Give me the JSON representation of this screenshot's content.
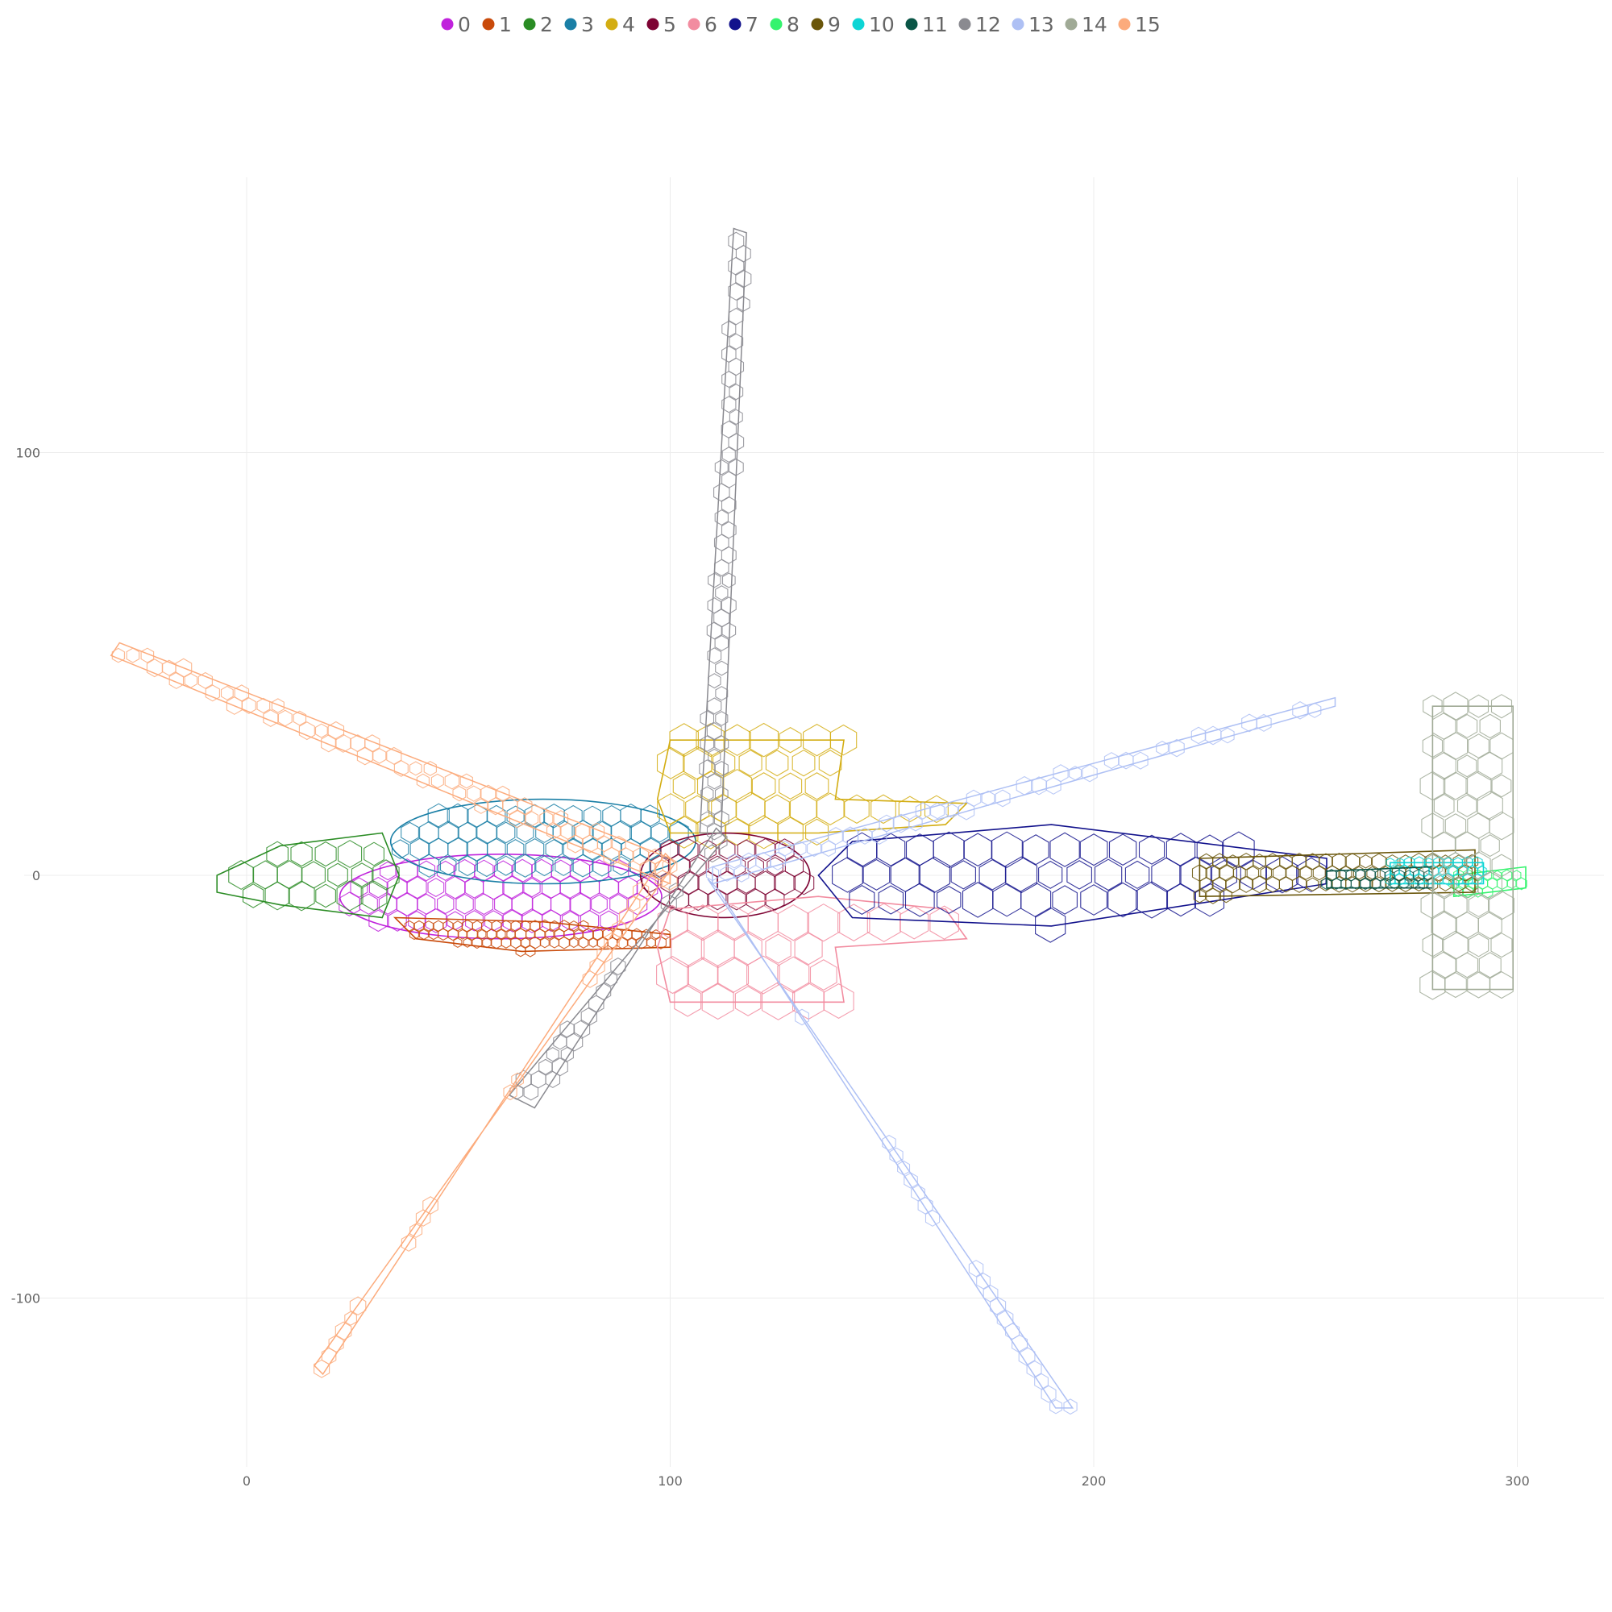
{
  "chart_data": {
    "type": "scatter",
    "title": "",
    "xlabel": "",
    "ylabel": "",
    "xlim": [
      -58,
      322
    ],
    "ylim": [
      -135,
      165
    ],
    "x_ticks": [
      0,
      100,
      200,
      300
    ],
    "y_ticks": [
      -100,
      0,
      100
    ],
    "x_tick_labels": [
      "0",
      "100",
      "200",
      "300"
    ],
    "y_tick_labels": [
      "-100",
      "0",
      "100"
    ],
    "grid": true,
    "legend_position": "top-center",
    "series": [
      {
        "name": "0",
        "color": "#c022dc",
        "shape": "ellipse",
        "center": [
          60,
          -5
        ],
        "radii": [
          38,
          10
        ]
      },
      {
        "name": "1",
        "color": "#c94a0a",
        "shape": "hull",
        "points": [
          [
            35,
            -10
          ],
          [
            70,
            -11
          ],
          [
            100,
            -14
          ],
          [
            100,
            -17
          ],
          [
            65,
            -18
          ],
          [
            40,
            -15
          ]
        ]
      },
      {
        "name": "2",
        "color": "#2a8c24",
        "shape": "hull",
        "points": [
          [
            32,
            10
          ],
          [
            8,
            7
          ],
          [
            -7,
            0
          ],
          [
            -7,
            -4
          ],
          [
            8,
            -7
          ],
          [
            32,
            -10
          ],
          [
            36,
            0
          ]
        ]
      },
      {
        "name": "3",
        "color": "#1a7fa6",
        "shape": "ellipse",
        "center": [
          70,
          8
        ],
        "radii": [
          36,
          10
        ]
      },
      {
        "name": "4",
        "color": "#d3ad12",
        "shape": "hull",
        "points": [
          [
            100,
            32
          ],
          [
            141,
            32
          ],
          [
            139,
            18
          ],
          [
            170,
            17
          ],
          [
            165,
            12
          ],
          [
            135,
            10
          ],
          [
            100,
            10
          ],
          [
            97,
            18
          ]
        ]
      },
      {
        "name": "5",
        "color": "#7e0333",
        "shape": "ellipse",
        "center": [
          113,
          0
        ],
        "radii": [
          20,
          10
        ]
      },
      {
        "name": "6",
        "color": "#f28ca0",
        "shape": "hull",
        "points": [
          [
            100,
            -30
          ],
          [
            141,
            -30
          ],
          [
            139,
            -17
          ],
          [
            170,
            -15
          ],
          [
            165,
            -8
          ],
          [
            135,
            -5
          ],
          [
            100,
            -8
          ],
          [
            97,
            -17
          ]
        ]
      },
      {
        "name": "7",
        "color": "#12128c",
        "shape": "hull",
        "points": [
          [
            143,
            8
          ],
          [
            190,
            12
          ],
          [
            255,
            4
          ],
          [
            255,
            -2
          ],
          [
            190,
            -12
          ],
          [
            143,
            -10
          ],
          [
            135,
            0
          ]
        ]
      },
      {
        "name": "8",
        "color": "#35f36e",
        "shape": "hull",
        "points": [
          [
            285,
            0
          ],
          [
            302,
            2
          ],
          [
            302,
            -3
          ],
          [
            285,
            -5
          ]
        ]
      },
      {
        "name": "9",
        "color": "#6a560a",
        "shape": "hull",
        "points": [
          [
            225,
            4
          ],
          [
            290,
            6
          ],
          [
            290,
            -4
          ],
          [
            225,
            -5
          ]
        ]
      },
      {
        "name": "10",
        "color": "#0dd5d5",
        "shape": "hull",
        "points": [
          [
            270,
            3
          ],
          [
            292,
            3
          ],
          [
            292,
            -2
          ],
          [
            270,
            -2
          ]
        ]
      },
      {
        "name": "11",
        "color": "#0a5546",
        "shape": "hull",
        "points": [
          [
            255,
            1
          ],
          [
            280,
            2
          ],
          [
            280,
            -3
          ],
          [
            255,
            -3
          ]
        ]
      },
      {
        "name": "12",
        "color": "#8a8a90",
        "shape": "rotor",
        "points": [
          [
            112,
            10
          ],
          [
            118,
            152
          ],
          [
            115,
            153
          ],
          [
            107,
            10
          ],
          [
            68,
            -55
          ],
          [
            62,
            -52
          ]
        ]
      },
      {
        "name": "13",
        "color": "#aec0f4",
        "shape": "rotor",
        "points": [
          [
            110,
            -2
          ],
          [
            257,
            40
          ],
          [
            257,
            42
          ],
          [
            110,
            2
          ],
          [
            195,
            -126
          ],
          [
            191,
            -126
          ]
        ]
      },
      {
        "name": "14",
        "color": "#a0aa96",
        "shape": "hull",
        "points": [
          [
            280,
            40
          ],
          [
            299,
            40
          ],
          [
            299,
            -27
          ],
          [
            280,
            -27
          ]
        ]
      },
      {
        "name": "15",
        "color": "#fcab7c",
        "shape": "rotor",
        "points": [
          [
            100,
            4
          ],
          [
            -30,
            55
          ],
          [
            -32,
            52
          ],
          [
            100,
            -2
          ],
          [
            18,
            -118
          ],
          [
            16,
            -116
          ]
        ]
      }
    ]
  }
}
